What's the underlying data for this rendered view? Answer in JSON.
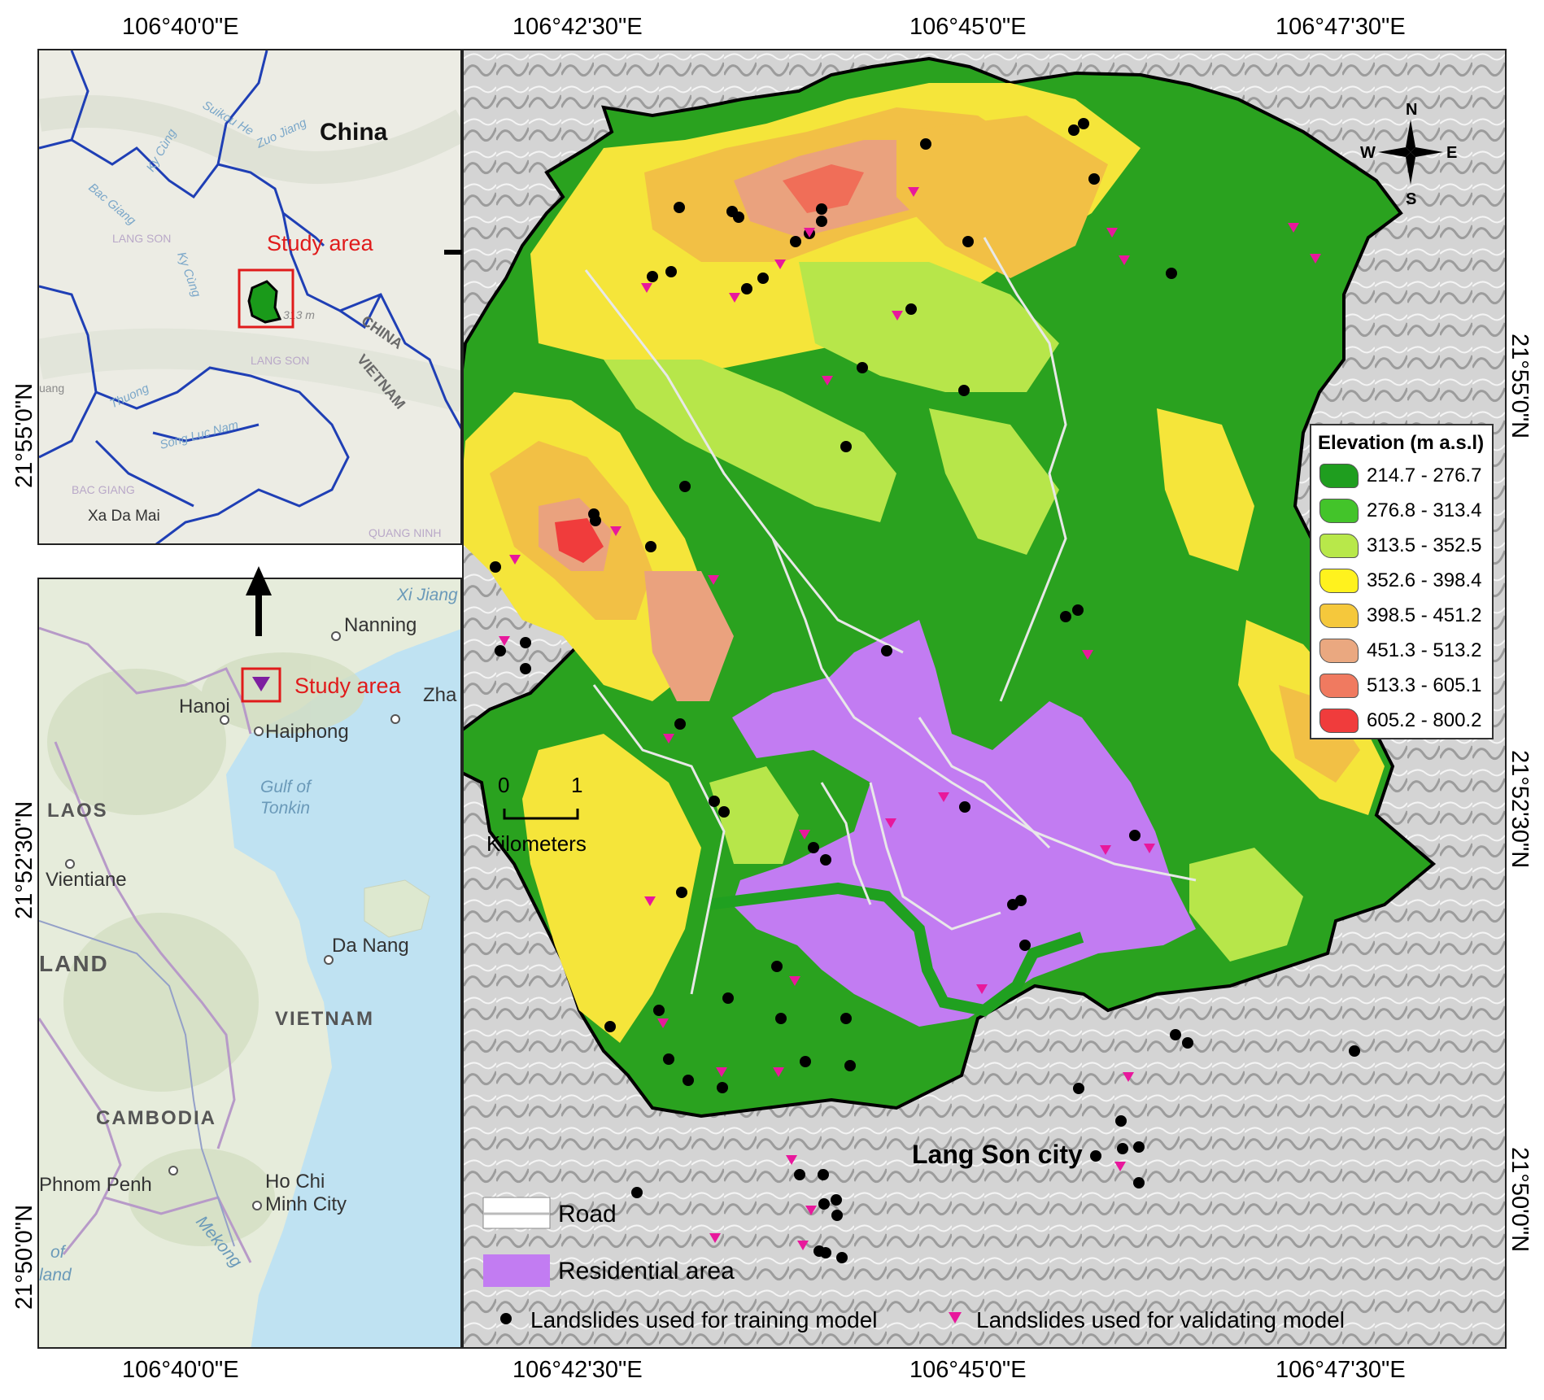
{
  "coords": {
    "top": [
      "106°40'0\"E",
      "106°42'30\"E",
      "106°45'0\"E",
      "106°47'30\"E"
    ],
    "bottom": [
      "106°40'0\"E",
      "106°42'30\"E",
      "106°45'0\"E",
      "106°47'30\"E"
    ],
    "left": [
      "21°55'0\"N",
      "21°52'30\"N",
      "21°50'0\"N"
    ],
    "right": [
      "21°55'0\"N",
      "21°52'30\"N",
      "21°50'0\"N"
    ]
  },
  "inset_top": {
    "country_label": "China",
    "study_area_label": "Study area",
    "small_labels": [
      "Suikou He",
      "Zuo Jiang",
      "Bac Giang",
      "Ky Cùng",
      "LANG SON",
      "Ky Cùng",
      "CHINA",
      "VIETNAM",
      "LANG SON",
      "Thuong",
      "BAC GIANG",
      "Song Luc Nam",
      "Xa Da Mai",
      "QUANG NINH",
      "uang",
      "313 m"
    ]
  },
  "inset_bottom": {
    "study_area_label": "Study area",
    "places": [
      "Nanning",
      "Hanoi",
      "Haiphong",
      "Zha",
      "Vientiane",
      "Da Nang",
      "Phnom Penh",
      "Ho Chi",
      "Minh City"
    ],
    "regions": [
      "LAOS",
      "LAND",
      "VIETNAM",
      "CAMBODIA",
      "Gulf of",
      "Tonkin",
      "Xi Jiang",
      "Mekong",
      "of",
      "land"
    ]
  },
  "main_map": {
    "city_label": "Lang Son city",
    "north_arrow": {
      "n": "N",
      "s": "S",
      "e": "E",
      "w": "W"
    },
    "scale": {
      "start": "0",
      "end": "1",
      "unit": "Kilometers"
    },
    "legend": {
      "title": "Elevation (m a.s.l)",
      "classes": [
        {
          "label": "214.7 - 276.7",
          "color": "#1f9e1f"
        },
        {
          "label": "276.8 - 313.4",
          "color": "#43c42a"
        },
        {
          "label": "313.5 - 352.5",
          "color": "#b8e84a"
        },
        {
          "label": "352.6 - 398.4",
          "color": "#fff21e"
        },
        {
          "label": "398.5 - 451.2",
          "color": "#f5c83c"
        },
        {
          "label": "451.3 - 513.2",
          "color": "#eaa880"
        },
        {
          "label": "513.3 - 605.1",
          "color": "#f07a60"
        },
        {
          "label": "605.2 - 800.2",
          "color": "#f03c3c"
        }
      ]
    },
    "bottom_legend": {
      "road": "Road",
      "residential": "Residential area",
      "training": "Landslides used for training model",
      "validating": "Landslides used for validating model"
    }
  },
  "colors": {
    "residential": "#c27cf2",
    "validation_marker": "#e8189c",
    "training_marker": "#000000",
    "river": "#1f66c8"
  }
}
